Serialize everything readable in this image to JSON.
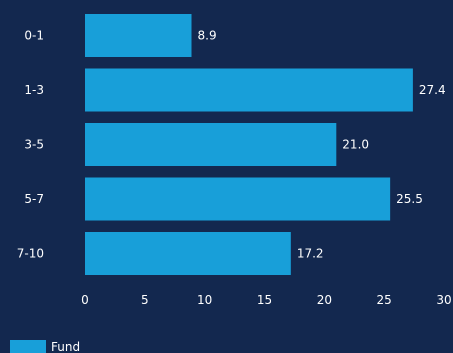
{
  "chart_data": {
    "type": "bar",
    "orientation": "horizontal",
    "categories": [
      "0-1",
      "1-3",
      "3-5",
      "5-7",
      "7-10"
    ],
    "series": [
      {
        "name": "Fund",
        "values": [
          8.9,
          27.4,
          21.0,
          25.5,
          17.2
        ],
        "labels": [
          "8.9",
          "27.4",
          "21.0",
          "25.5",
          "17.2"
        ],
        "color": "#189fd9"
      }
    ],
    "xlim": [
      0,
      30
    ],
    "xticks": [
      "0",
      "5",
      "10",
      "15",
      "20",
      "25",
      "30"
    ],
    "title": "",
    "xlabel": "",
    "ylabel": "",
    "grid": false,
    "legend_position": "bottom-left"
  },
  "colors": {
    "background": "#13284f",
    "bar": "#189fd9",
    "text": "#ffffff"
  }
}
